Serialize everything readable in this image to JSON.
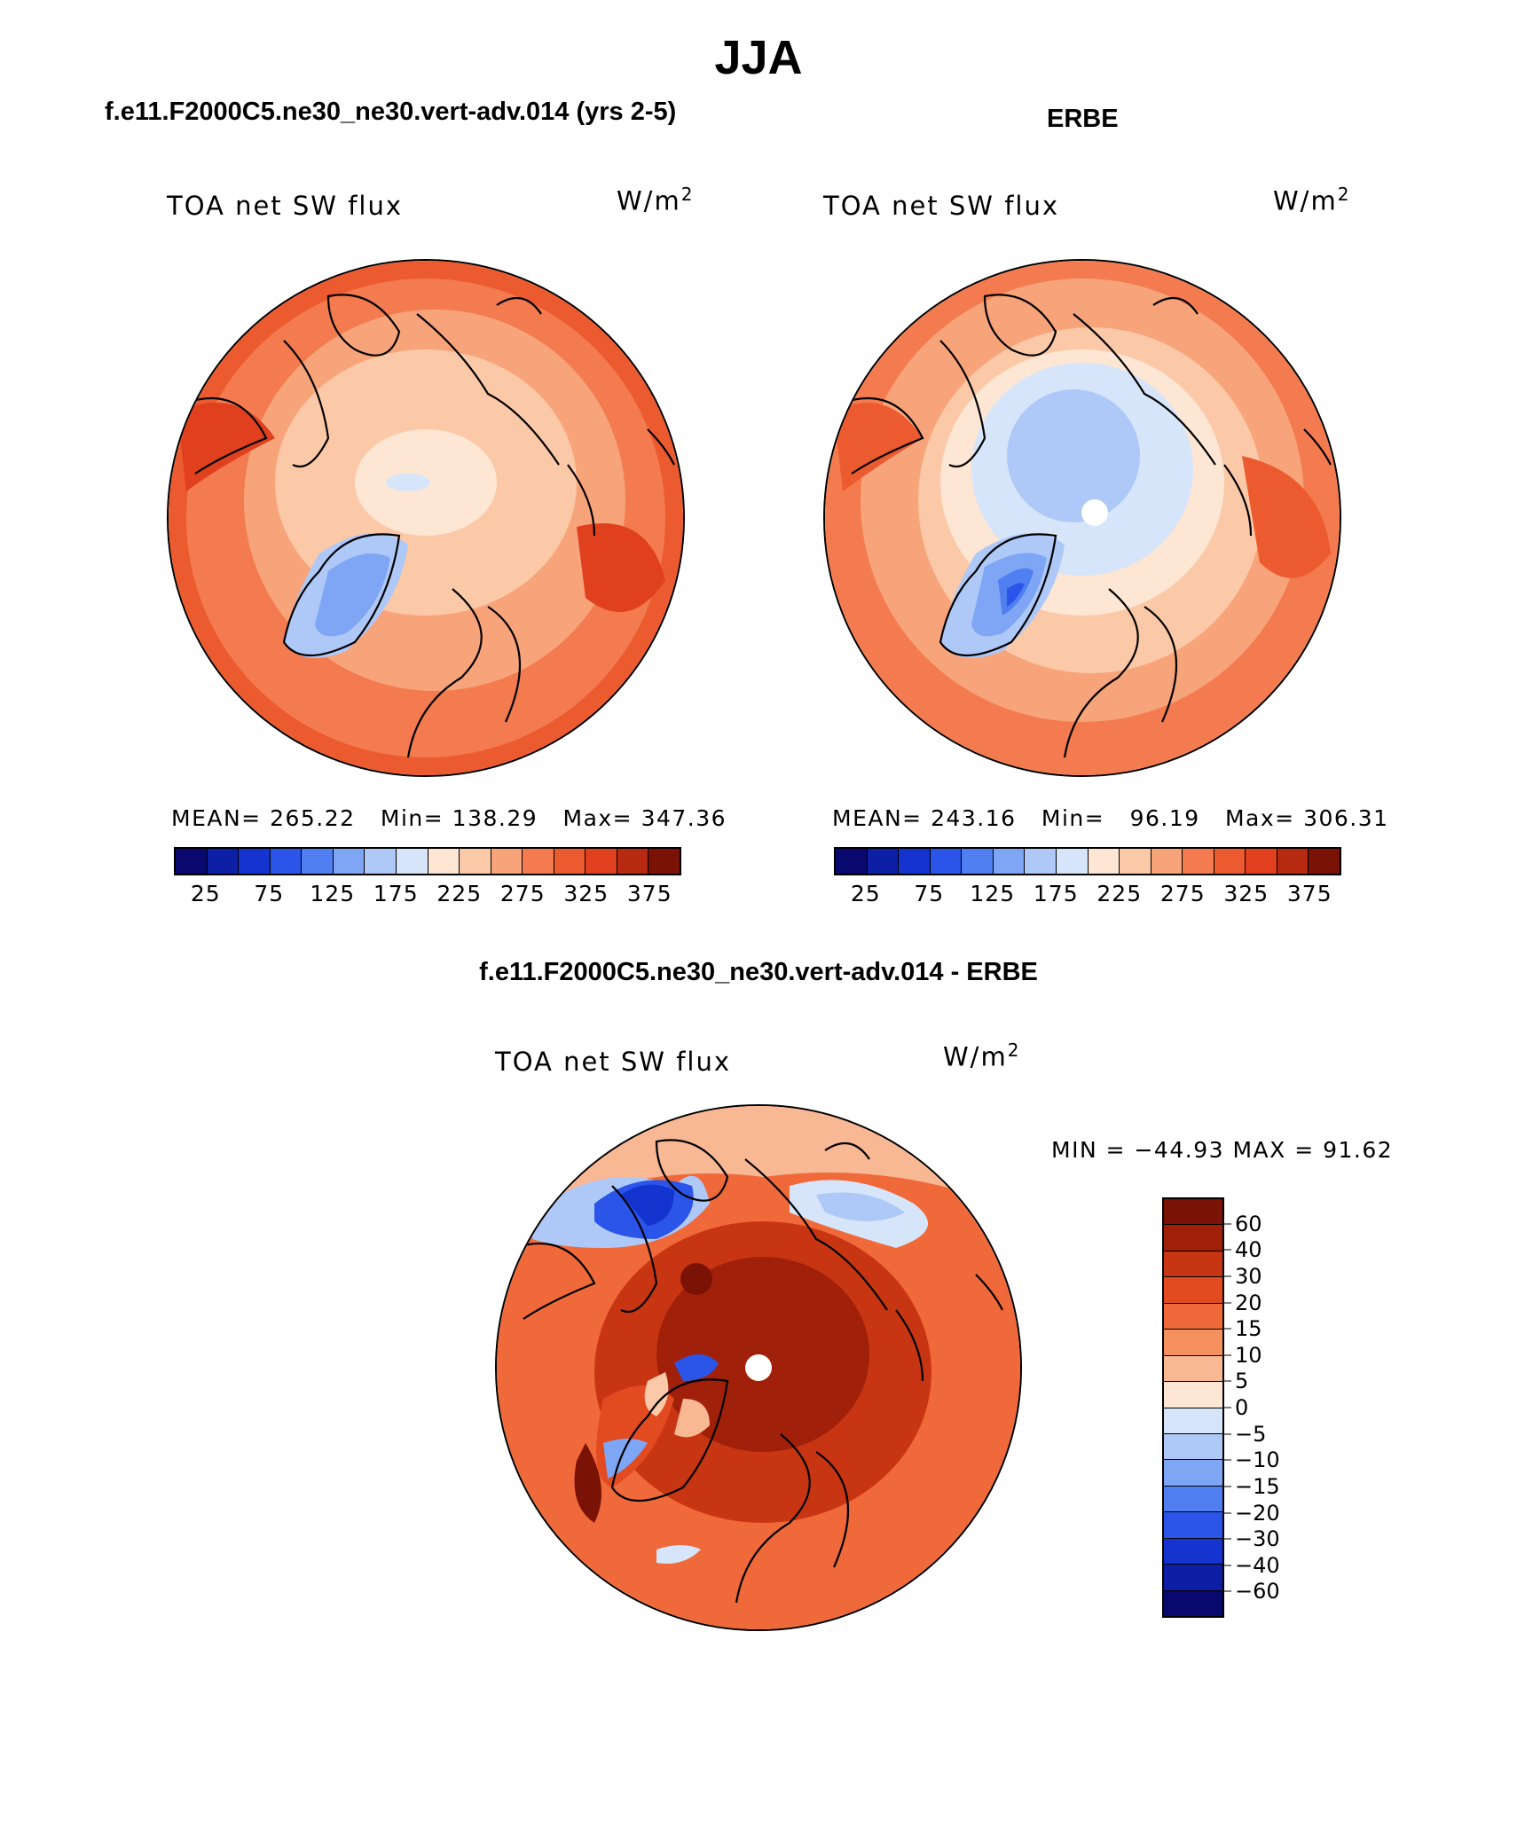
{
  "figure_title": "JJA",
  "panels": {
    "model": {
      "heading": "f.e11.F2000C5.ne30_ne30.vert-adv.014 (yrs 2-5)",
      "var_label": "TOA net SW flux",
      "units": "W/m",
      "units_sup": "2",
      "stats": {
        "mean_label": "MEAN=",
        "mean": "265.22",
        "min_label": "Min=",
        "min": "138.29",
        "max_label": "Max=",
        "max": "347.36"
      }
    },
    "obs": {
      "heading": "ERBE",
      "var_label": "TOA net SW flux",
      "units": "W/m",
      "units_sup": "2",
      "stats": {
        "mean_label": "MEAN=",
        "mean": "243.16",
        "min_label": "Min=",
        "min": "96.19",
        "max_label": "Max=",
        "max": "306.31"
      }
    },
    "diff": {
      "heading": "f.e11.F2000C5.ne30_ne30.vert-adv.014 - ERBE",
      "var_label": "TOA net SW flux",
      "units": "W/m",
      "units_sup": "2",
      "minmax": "MIN = −44.93 MAX =  91.62"
    }
  },
  "abs_colorbar": {
    "colors": [
      "#08086e",
      "#0d1fa5",
      "#1433cf",
      "#2a55e8",
      "#4f7ff0",
      "#7ea6f4",
      "#aec8f7",
      "#d6e5fa",
      "#fde6d4",
      "#fbc9a7",
      "#f8a47b",
      "#f37b4f",
      "#ec5a2f",
      "#e0401e",
      "#b52a10",
      "#7a1205"
    ],
    "ticks": [
      "25",
      "75",
      "125",
      "175",
      "225",
      "275",
      "325",
      "375"
    ]
  },
  "diff_colorbar": {
    "colors": [
      "#7a1205",
      "#a0200a",
      "#c83512",
      "#e24a20",
      "#f0693a",
      "#f5905f",
      "#f9b894",
      "#fde6d4",
      "#d6e5fa",
      "#aec8f7",
      "#7ea6f4",
      "#4f7ff0",
      "#2a55e8",
      "#1433cf",
      "#0d1fa5",
      "#08086e"
    ],
    "ticks": [
      "60",
      "40",
      "30",
      "20",
      "15",
      "10",
      "5",
      "0",
      "−5",
      "−10",
      "−15",
      "−20",
      "−30",
      "−40",
      "−60"
    ]
  }
}
